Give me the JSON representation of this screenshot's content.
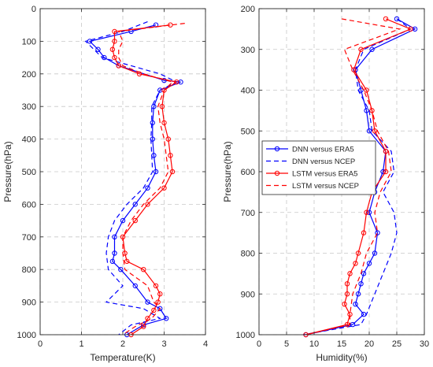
{
  "chart_data": [
    {
      "type": "line",
      "xlabel": "Temperature(K)",
      "ylabel": "Pressure(hPa)",
      "xlim": [
        0,
        4
      ],
      "ylim": [
        1000,
        0
      ],
      "y_reversed": true,
      "grid": true,
      "xticks": [
        "0",
        "1",
        "2",
        "3",
        "4"
      ],
      "yticks": [
        "0",
        "100",
        "200",
        "300",
        "400",
        "500",
        "600",
        "700",
        "800",
        "900",
        "1000"
      ],
      "series": [
        {
          "color": "#0000ff",
          "style": "solid",
          "marker": "circle",
          "points": [
            [
              2.8,
              50
            ],
            [
              2.2,
              70
            ],
            [
              1.2,
              100
            ],
            [
              1.4,
              125
            ],
            [
              1.55,
              150
            ],
            [
              1.9,
              175
            ],
            [
              3.0,
              220
            ],
            [
              3.4,
              225
            ],
            [
              2.9,
              250
            ],
            [
              2.75,
              300
            ],
            [
              2.72,
              350
            ],
            [
              2.72,
              400
            ],
            [
              2.75,
              450
            ],
            [
              2.8,
              500
            ],
            [
              2.6,
              550
            ],
            [
              2.3,
              600
            ],
            [
              2.0,
              650
            ],
            [
              1.8,
              700
            ],
            [
              1.8,
              750
            ],
            [
              1.75,
              775
            ],
            [
              1.95,
              800
            ],
            [
              2.3,
              850
            ],
            [
              2.6,
              900
            ],
            [
              2.9,
              920
            ],
            [
              3.05,
              950
            ],
            [
              2.5,
              970
            ],
            [
              2.1,
              1000
            ]
          ]
        },
        {
          "color": "#0000ff",
          "style": "dashed",
          "marker": "none",
          "points": [
            [
              2.6,
              40
            ],
            [
              2.0,
              70
            ],
            [
              1.1,
              100
            ],
            [
              1.3,
              125
            ],
            [
              1.5,
              150
            ],
            [
              2.2,
              175
            ],
            [
              2.9,
              200
            ],
            [
              3.3,
              225
            ],
            [
              2.9,
              250
            ],
            [
              2.7,
              300
            ],
            [
              2.7,
              350
            ],
            [
              2.68,
              400
            ],
            [
              2.7,
              450
            ],
            [
              2.72,
              500
            ],
            [
              2.5,
              550
            ],
            [
              2.1,
              600
            ],
            [
              1.8,
              650
            ],
            [
              1.65,
              700
            ],
            [
              1.6,
              750
            ],
            [
              1.65,
              800
            ],
            [
              2.0,
              850
            ],
            [
              1.6,
              900
            ],
            [
              2.5,
              920
            ],
            [
              2.9,
              950
            ],
            [
              2.2,
              970
            ],
            [
              1.9,
              1000
            ]
          ]
        },
        {
          "color": "#ff0000",
          "style": "solid",
          "marker": "circle",
          "points": [
            [
              3.15,
              50
            ],
            [
              1.8,
              70
            ],
            [
              1.8,
              100
            ],
            [
              1.75,
              125
            ],
            [
              1.8,
              150
            ],
            [
              1.9,
              175
            ],
            [
              2.4,
              200
            ],
            [
              3.3,
              225
            ],
            [
              3.0,
              250
            ],
            [
              2.95,
              300
            ],
            [
              3.0,
              350
            ],
            [
              3.1,
              400
            ],
            [
              3.15,
              450
            ],
            [
              3.2,
              500
            ],
            [
              3.0,
              550
            ],
            [
              2.6,
              600
            ],
            [
              2.3,
              650
            ],
            [
              2.0,
              700
            ],
            [
              2.05,
              750
            ],
            [
              2.1,
              775
            ],
            [
              2.5,
              800
            ],
            [
              2.8,
              850
            ],
            [
              2.9,
              875
            ],
            [
              2.85,
              900
            ],
            [
              2.75,
              925
            ],
            [
              2.6,
              950
            ],
            [
              2.5,
              975
            ],
            [
              2.2,
              1000
            ]
          ]
        },
        {
          "color": "#ff0000",
          "style": "dashed",
          "marker": "none",
          "points": [
            [
              3.5,
              45
            ],
            [
              1.9,
              70
            ],
            [
              2.0,
              100
            ],
            [
              1.9,
              125
            ],
            [
              1.9,
              150
            ],
            [
              2.0,
              175
            ],
            [
              2.5,
              200
            ],
            [
              3.2,
              225
            ],
            [
              3.0,
              250
            ],
            [
              2.85,
              300
            ],
            [
              2.9,
              350
            ],
            [
              3.0,
              400
            ],
            [
              3.05,
              450
            ],
            [
              3.1,
              500
            ],
            [
              2.9,
              550
            ],
            [
              2.5,
              600
            ],
            [
              2.2,
              650
            ],
            [
              2.0,
              700
            ],
            [
              2.0,
              750
            ],
            [
              2.05,
              800
            ],
            [
              2.6,
              850
            ],
            [
              2.75,
              900
            ],
            [
              2.9,
              920
            ],
            [
              2.7,
              950
            ],
            [
              2.3,
              975
            ],
            [
              2.0,
              1000
            ]
          ]
        }
      ]
    },
    {
      "type": "line",
      "xlabel": "Humidity(%)",
      "ylabel": "Pressure(hPa)",
      "xlim": [
        0,
        30
      ],
      "ylim": [
        1000,
        200
      ],
      "y_reversed": true,
      "grid": true,
      "xticks": [
        "0",
        "5",
        "10",
        "15",
        "20",
        "25",
        "30"
      ],
      "yticks": [
        "200",
        "300",
        "400",
        "500",
        "600",
        "700",
        "800",
        "900",
        "1000"
      ],
      "legend": {
        "position": "center-left",
        "entries": [
          {
            "label": "DNN versus ERA5",
            "color": "#0000ff",
            "style": "solid",
            "marker": "circle"
          },
          {
            "label": "DNN versus NCEP",
            "color": "#0000ff",
            "style": "dashed",
            "marker": "none"
          },
          {
            "label": "LSTM versus ERA5",
            "color": "#ff0000",
            "style": "solid",
            "marker": "circle"
          },
          {
            "label": "LSTM versus NCEP",
            "color": "#ff0000",
            "style": "dashed",
            "marker": "none"
          }
        ]
      },
      "series": [
        {
          "color": "#0000ff",
          "style": "solid",
          "marker": "circle",
          "points": [
            [
              25,
              225
            ],
            [
              28.3,
              250
            ],
            [
              20.5,
              300
            ],
            [
              17.5,
              350
            ],
            [
              18.5,
              400
            ],
            [
              19.5,
              450
            ],
            [
              20,
              500
            ],
            [
              23,
              550
            ],
            [
              22.5,
              600
            ],
            [
              21,
              650
            ],
            [
              20,
              700
            ],
            [
              21.5,
              750
            ],
            [
              21,
              800
            ],
            [
              20,
              825
            ],
            [
              19,
              850
            ],
            [
              18.5,
              875
            ],
            [
              18,
              900
            ],
            [
              17.5,
              925
            ],
            [
              19,
              950
            ],
            [
              17,
              975
            ],
            [
              8.5,
              1000
            ]
          ]
        },
        {
          "color": "#0000ff",
          "style": "dashed",
          "marker": "none",
          "points": [
            [
              25,
              225
            ],
            [
              27.5,
              250
            ],
            [
              19,
              300
            ],
            [
              17.5,
              350
            ],
            [
              18,
              400
            ],
            [
              20,
              450
            ],
            [
              20.5,
              500
            ],
            [
              24,
              550
            ],
            [
              24.5,
              600
            ],
            [
              22.5,
              650
            ],
            [
              24.5,
              700
            ],
            [
              25,
              750
            ],
            [
              24,
              800
            ],
            [
              22.5,
              850
            ],
            [
              21,
              900
            ],
            [
              19.5,
              950
            ],
            [
              18.5,
              975
            ],
            [
              8,
              1000
            ]
          ]
        },
        {
          "color": "#ff0000",
          "style": "solid",
          "marker": "circle",
          "points": [
            [
              23,
              225
            ],
            [
              27.5,
              250
            ],
            [
              18.5,
              300
            ],
            [
              17.2,
              350
            ],
            [
              19.5,
              400
            ],
            [
              20.5,
              450
            ],
            [
              21,
              500
            ],
            [
              23,
              550
            ],
            [
              23,
              600
            ],
            [
              20.5,
              650
            ],
            [
              19.5,
              700
            ],
            [
              19,
              750
            ],
            [
              18,
              800
            ],
            [
              17.5,
              825
            ],
            [
              16.5,
              850
            ],
            [
              16,
              875
            ],
            [
              16,
              900
            ],
            [
              15.5,
              925
            ],
            [
              16.5,
              950
            ],
            [
              16,
              975
            ],
            [
              8.5,
              1000
            ]
          ]
        },
        {
          "color": "#ff0000",
          "style": "dashed",
          "marker": "none",
          "points": [
            [
              15,
              225
            ],
            [
              25.5,
              250
            ],
            [
              15.5,
              300
            ],
            [
              17,
              350
            ],
            [
              19,
              400
            ],
            [
              20.5,
              450
            ],
            [
              21.5,
              500
            ],
            [
              23.5,
              550
            ],
            [
              24,
              600
            ],
            [
              22,
              650
            ],
            [
              21,
              700
            ],
            [
              21.5,
              750
            ],
            [
              19.5,
              800
            ],
            [
              18.5,
              850
            ],
            [
              17,
              900
            ],
            [
              16.5,
              950
            ],
            [
              16.5,
              975
            ],
            [
              8.5,
              1000
            ]
          ]
        }
      ]
    }
  ]
}
